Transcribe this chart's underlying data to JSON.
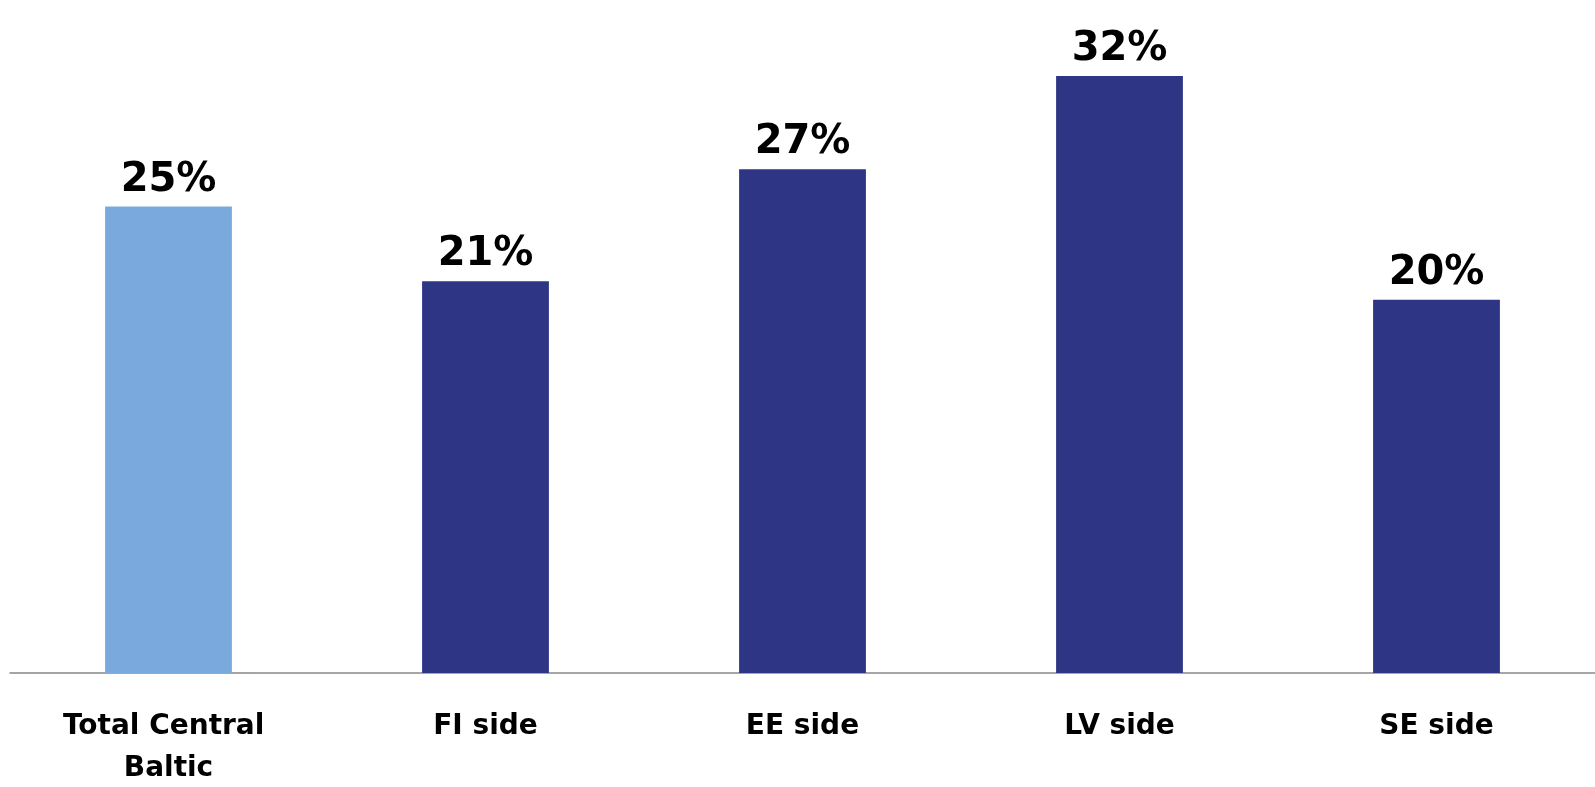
{
  "chart_data": {
    "type": "bar",
    "categories": [
      "Total Central Baltic",
      "FI side",
      "EE side",
      "LV side",
      "SE side"
    ],
    "values": [
      25,
      21,
      27,
      32,
      20
    ],
    "colors": [
      "#7aaadd",
      "#2e3585",
      "#2e3585",
      "#2e3585",
      "#2e3585"
    ],
    "value_labels": [
      "25%",
      "21%",
      "27%",
      "32%",
      "20%"
    ]
  }
}
